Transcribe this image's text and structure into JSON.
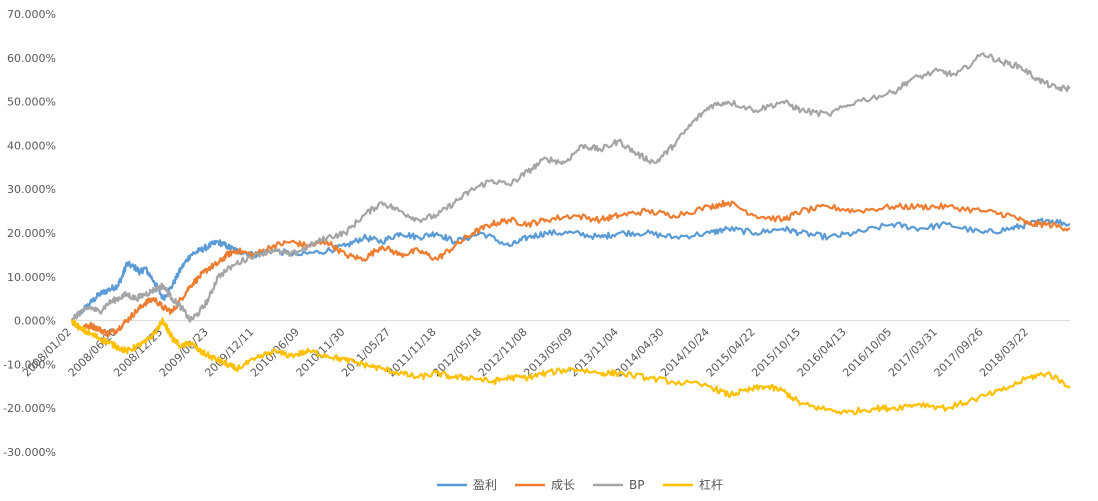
{
  "chart_data": {
    "type": "line",
    "title": "",
    "xlabel": "",
    "ylabel": "",
    "ylim": [
      -0.3,
      0.7
    ],
    "y_tick_values": [
      0.7,
      0.6,
      0.5,
      0.4,
      0.3,
      0.2,
      0.1,
      0.0,
      -0.1,
      -0.2,
      -0.3
    ],
    "y_tick_labels": [
      "70.000%",
      "60.000%",
      "50.000%",
      "40.000%",
      "30.000%",
      "20.000%",
      "10.000%",
      "0.000%",
      "-10.000%",
      "-20.000%",
      "-30.000%"
    ],
    "x_tick_labels": [
      "2008/01/02",
      "2008/06/20",
      "2008/12/23",
      "2009/06/23",
      "2009/12/11",
      "2010/06/09",
      "2010/11/30",
      "2011/05/27",
      "2011/11/18",
      "2012/05/18",
      "2012/11/08",
      "2013/05/09",
      "2013/11/04",
      "2014/04/30",
      "2014/10/24",
      "2015/04/22",
      "2015/10/15",
      "2016/04/13",
      "2016/10/05",
      "2017/03/31",
      "2017/09/26",
      "2018/03/22"
    ],
    "x_tick_positions": [
      0,
      0.5,
      1,
      1.5,
      2,
      2.5,
      3,
      3.5,
      4,
      4.5,
      5,
      5.5,
      6,
      6.5,
      7,
      7.5,
      8,
      8.5,
      9,
      9.5,
      10,
      10.5
    ],
    "x_range": [
      0,
      10.95
    ],
    "grid": false,
    "legend_position": "bottom",
    "series": [
      {
        "name": "盈利",
        "color": "#5B9BD5",
        "x": [
          0,
          0.1,
          0.2,
          0.3,
          0.4,
          0.5,
          0.55,
          0.6,
          0.7,
          0.75,
          0.8,
          0.9,
          1.0,
          1.1,
          1.2,
          1.3,
          1.4,
          1.5,
          1.6,
          1.7,
          1.8,
          2.0,
          2.2,
          2.5,
          2.8,
          3.0,
          3.2,
          3.4,
          3.6,
          3.8,
          4.0,
          4.2,
          4.5,
          4.8,
          5.0,
          5.2,
          5.5,
          5.8,
          6.0,
          6.3,
          6.6,
          7.0,
          7.2,
          7.5,
          7.8,
          8.0,
          8.3,
          8.6,
          9.0,
          9.3,
          9.6,
          10.0,
          10.3,
          10.5,
          10.7,
          10.95
        ],
        "y": [
          0.0,
          0.02,
          0.04,
          0.06,
          0.07,
          0.08,
          0.1,
          0.13,
          0.12,
          0.11,
          0.12,
          0.09,
          0.05,
          0.08,
          0.12,
          0.15,
          0.16,
          0.17,
          0.18,
          0.17,
          0.16,
          0.15,
          0.16,
          0.15,
          0.16,
          0.17,
          0.19,
          0.18,
          0.2,
          0.19,
          0.2,
          0.18,
          0.2,
          0.17,
          0.19,
          0.2,
          0.2,
          0.19,
          0.2,
          0.2,
          0.19,
          0.2,
          0.21,
          0.2,
          0.21,
          0.2,
          0.19,
          0.2,
          0.22,
          0.21,
          0.22,
          0.2,
          0.21,
          0.22,
          0.23,
          0.22
        ]
      },
      {
        "name": "成长",
        "color": "#ED7D31",
        "x": [
          0,
          0.1,
          0.2,
          0.3,
          0.4,
          0.5,
          0.6,
          0.7,
          0.8,
          0.9,
          1.0,
          1.1,
          1.2,
          1.3,
          1.4,
          1.5,
          1.6,
          1.7,
          1.8,
          2.0,
          2.2,
          2.4,
          2.6,
          2.8,
          3.0,
          3.2,
          3.4,
          3.6,
          3.8,
          4.0,
          4.2,
          4.4,
          4.6,
          4.8,
          5.0,
          5.2,
          5.5,
          5.8,
          6.0,
          6.3,
          6.6,
          7.0,
          7.2,
          7.5,
          7.8,
          8.0,
          8.3,
          8.6,
          9.0,
          9.3,
          9.6,
          10.0,
          10.3,
          10.5,
          10.7,
          10.95
        ],
        "y": [
          0.0,
          -0.02,
          -0.01,
          -0.02,
          -0.03,
          -0.02,
          0.0,
          0.02,
          0.04,
          0.05,
          0.03,
          0.02,
          0.05,
          0.08,
          0.1,
          0.12,
          0.13,
          0.15,
          0.16,
          0.15,
          0.17,
          0.18,
          0.17,
          0.18,
          0.15,
          0.14,
          0.17,
          0.15,
          0.16,
          0.14,
          0.17,
          0.2,
          0.22,
          0.23,
          0.22,
          0.23,
          0.24,
          0.23,
          0.24,
          0.25,
          0.24,
          0.26,
          0.27,
          0.24,
          0.23,
          0.25,
          0.26,
          0.25,
          0.26,
          0.26,
          0.26,
          0.25,
          0.24,
          0.22,
          0.22,
          0.21
        ]
      },
      {
        "name": "BP",
        "color": "#A5A5A5",
        "x": [
          0,
          0.1,
          0.2,
          0.3,
          0.4,
          0.5,
          0.6,
          0.7,
          0.8,
          0.9,
          1.0,
          1.1,
          1.2,
          1.3,
          1.4,
          1.5,
          1.6,
          1.8,
          2.0,
          2.2,
          2.4,
          2.6,
          2.8,
          3.0,
          3.2,
          3.4,
          3.6,
          3.8,
          4.0,
          4.2,
          4.4,
          4.6,
          4.8,
          5.0,
          5.2,
          5.4,
          5.6,
          5.8,
          6.0,
          6.2,
          6.4,
          6.6,
          6.8,
          7.0,
          7.2,
          7.5,
          7.8,
          8.0,
          8.3,
          8.6,
          9.0,
          9.2,
          9.5,
          9.7,
          10.0,
          10.2,
          10.4,
          10.6,
          10.8,
          10.95
        ],
        "y": [
          0.0,
          0.02,
          0.03,
          0.02,
          0.04,
          0.05,
          0.06,
          0.05,
          0.06,
          0.07,
          0.08,
          0.05,
          0.03,
          0.0,
          0.02,
          0.05,
          0.1,
          0.13,
          0.15,
          0.16,
          0.15,
          0.17,
          0.19,
          0.2,
          0.24,
          0.27,
          0.25,
          0.23,
          0.24,
          0.27,
          0.3,
          0.32,
          0.31,
          0.34,
          0.37,
          0.36,
          0.4,
          0.39,
          0.41,
          0.38,
          0.36,
          0.4,
          0.45,
          0.49,
          0.5,
          0.48,
          0.5,
          0.48,
          0.47,
          0.5,
          0.52,
          0.55,
          0.57,
          0.56,
          0.61,
          0.59,
          0.58,
          0.55,
          0.53,
          0.53
        ]
      },
      {
        "name": "杠杆",
        "color": "#FFC000",
        "x": [
          0,
          0.1,
          0.2,
          0.3,
          0.4,
          0.5,
          0.6,
          0.7,
          0.8,
          0.9,
          1.0,
          1.1,
          1.2,
          1.3,
          1.4,
          1.5,
          1.6,
          1.7,
          1.8,
          2.0,
          2.2,
          2.4,
          2.6,
          2.8,
          3.0,
          3.2,
          3.4,
          3.6,
          3.8,
          4.0,
          4.2,
          4.4,
          4.6,
          4.8,
          5.0,
          5.2,
          5.5,
          5.8,
          6.0,
          6.3,
          6.6,
          7.0,
          7.2,
          7.4,
          7.6,
          7.8,
          8.0,
          8.2,
          8.5,
          8.8,
          9.0,
          9.3,
          9.6,
          9.9,
          10.2,
          10.5,
          10.7,
          10.95
        ],
        "y": [
          0.0,
          -0.02,
          -0.03,
          -0.04,
          -0.05,
          -0.06,
          -0.07,
          -0.06,
          -0.05,
          -0.03,
          0.0,
          -0.04,
          -0.06,
          -0.05,
          -0.07,
          -0.08,
          -0.09,
          -0.1,
          -0.11,
          -0.09,
          -0.07,
          -0.08,
          -0.07,
          -0.08,
          -0.09,
          -0.1,
          -0.11,
          -0.12,
          -0.13,
          -0.12,
          -0.13,
          -0.13,
          -0.14,
          -0.13,
          -0.13,
          -0.12,
          -0.11,
          -0.12,
          -0.12,
          -0.13,
          -0.14,
          -0.15,
          -0.17,
          -0.16,
          -0.15,
          -0.16,
          -0.19,
          -0.2,
          -0.21,
          -0.2,
          -0.2,
          -0.19,
          -0.2,
          -0.18,
          -0.16,
          -0.13,
          -0.12,
          -0.15
        ]
      }
    ]
  }
}
